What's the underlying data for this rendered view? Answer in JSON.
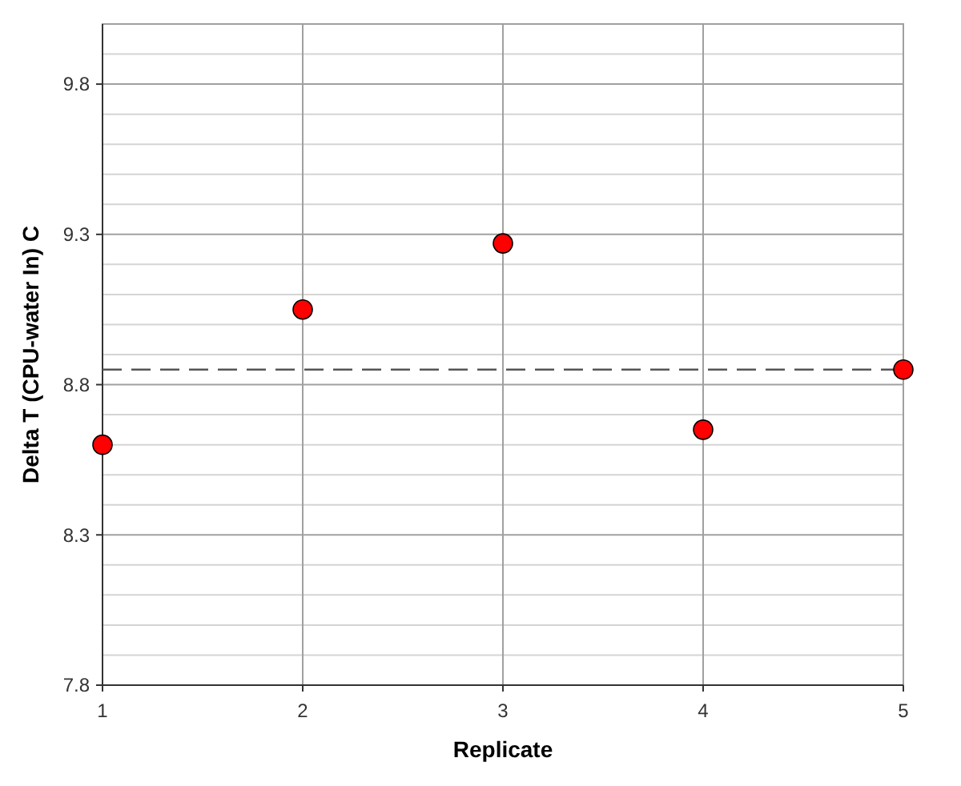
{
  "chart_data": {
    "type": "scatter",
    "xlabel": "Replicate",
    "ylabel": "Delta T (CPU-water In) C",
    "x": [
      1,
      2,
      3,
      4,
      5
    ],
    "series": [
      {
        "color": "#ff0000",
        "values": [
          8.6,
          9.05,
          9.27,
          8.65,
          8.85
        ]
      }
    ],
    "xlim": [
      1,
      5
    ],
    "xticks": [
      1,
      2,
      3,
      4,
      5
    ],
    "ylim": [
      7.8,
      10.0
    ],
    "yticks": [
      7.8,
      {
        "value": 7.9,
        "label": null
      },
      {
        "value": 8.0,
        "label": null
      },
      {
        "value": 8.1,
        "label": null
      },
      {
        "value": 8.2,
        "label": null
      },
      8.3,
      {
        "value": 8.4,
        "label": null
      },
      {
        "value": 8.5,
        "label": null
      },
      {
        "value": 8.6,
        "label": null
      },
      {
        "value": 8.7,
        "label": null
      },
      8.8,
      {
        "value": 8.9,
        "label": null
      },
      {
        "value": 9.0,
        "label": null
      },
      {
        "value": 9.1,
        "label": null
      },
      {
        "value": 9.2,
        "label": null
      },
      9.3,
      {
        "value": 9.4,
        "label": null
      },
      {
        "value": 9.5,
        "label": null
      },
      {
        "value": 9.6,
        "label": null
      },
      {
        "value": 9.7,
        "label": null
      },
      9.8,
      {
        "value": 9.9,
        "label": null
      }
    ],
    "ref_lines": [
      {
        "axis": "y",
        "value": 8.85,
        "color": "#555555",
        "line_style": "dashed"
      }
    ],
    "grid": true,
    "marker": "circle"
  }
}
